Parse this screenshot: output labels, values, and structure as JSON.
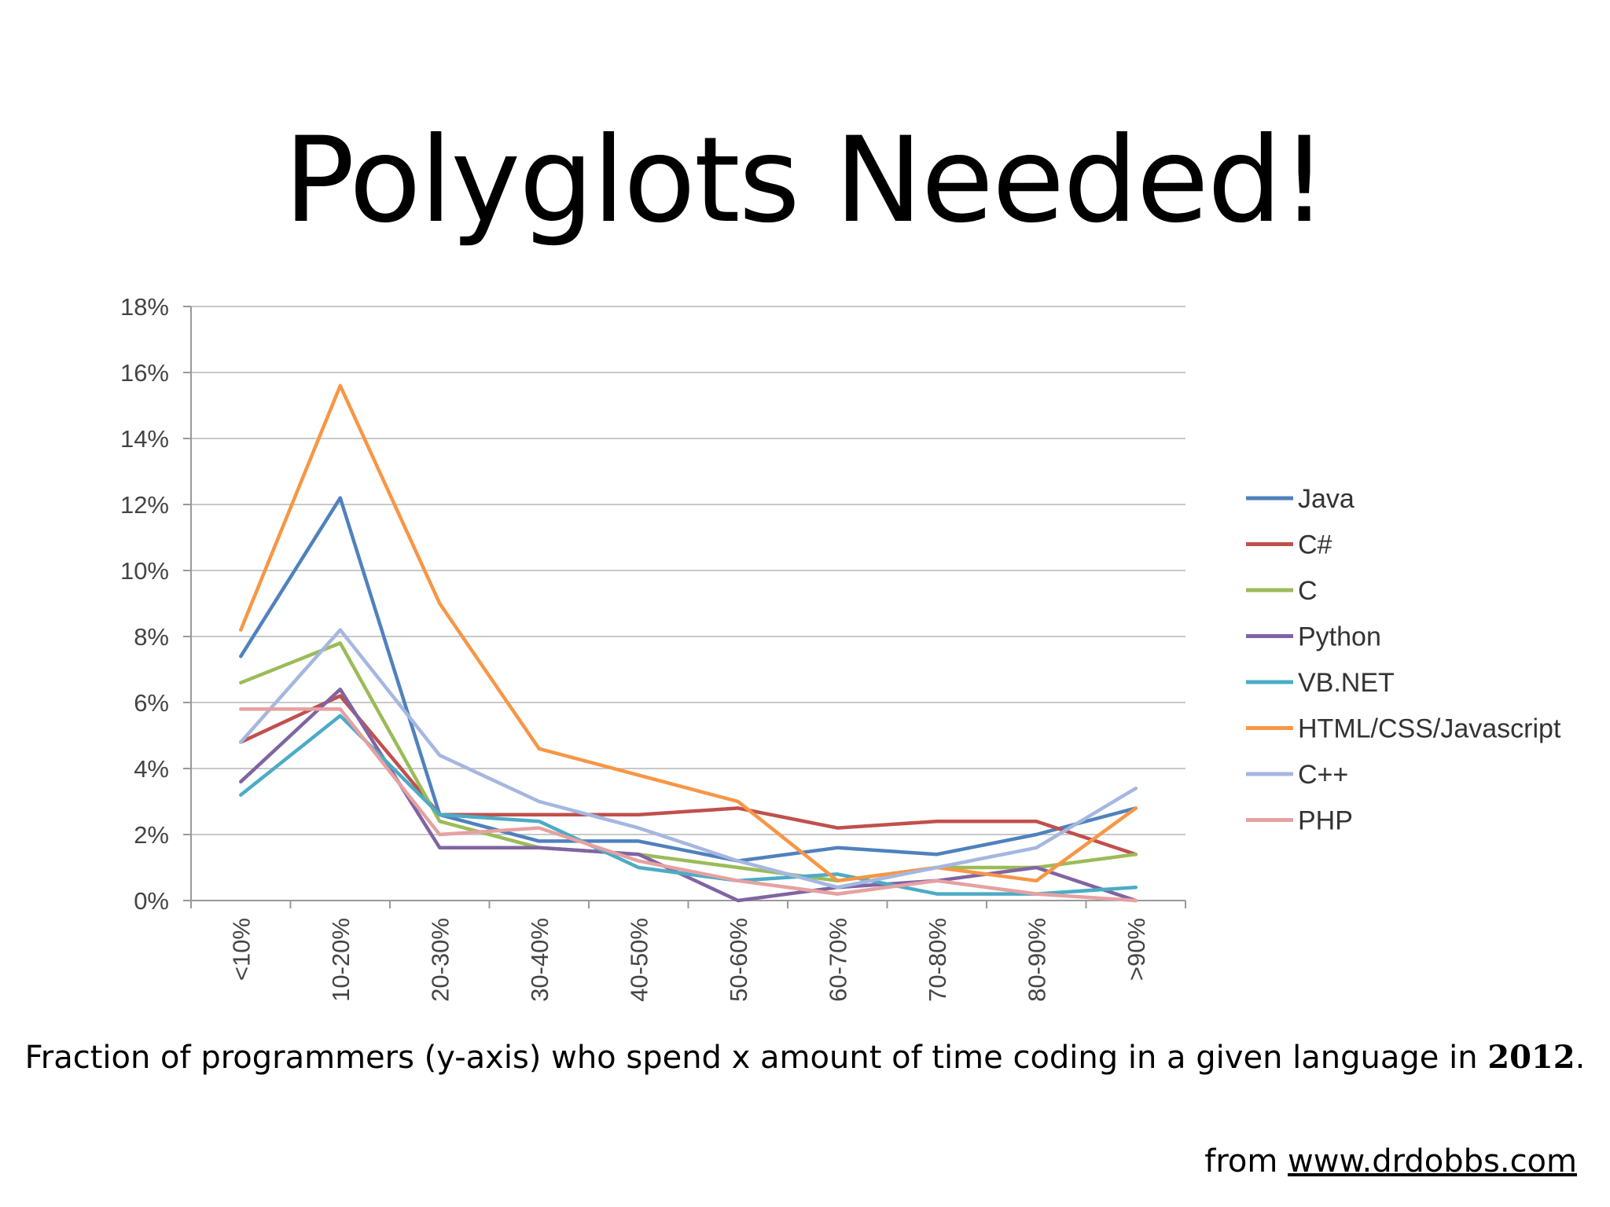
{
  "slide": {
    "title": "Polyglots Needed!",
    "caption_prefix": "Fraction of programmers (y-axis) who spend x amount of time coding in a given language in ",
    "caption_year": "2012",
    "caption_suffix": ".",
    "source_prefix": "from ",
    "source_link": "www.drdobbs.com"
  },
  "chart_data": {
    "type": "line",
    "categories": [
      "<10%",
      "10-20%",
      "20-30%",
      "30-40%",
      "40-50%",
      "50-60%",
      "60-70%",
      "70-80%",
      "80-90%",
      ">90%"
    ],
    "ylim": [
      0,
      18
    ],
    "yticks": [
      "0%",
      "2%",
      "4%",
      "6%",
      "8%",
      "10%",
      "12%",
      "14%",
      "16%",
      "18%"
    ],
    "ytick_values": [
      0,
      2,
      4,
      6,
      8,
      10,
      12,
      14,
      16,
      18
    ],
    "xlabel": "",
    "ylabel": "",
    "grid": "horizontal",
    "legend_position": "right",
    "series": [
      {
        "name": "Java",
        "color": "#4F81BD",
        "values": [
          7.4,
          12.2,
          2.6,
          1.8,
          1.8,
          1.2,
          1.6,
          1.4,
          2.0,
          2.8
        ]
      },
      {
        "name": "C#",
        "color": "#C0504D",
        "values": [
          4.8,
          6.2,
          2.6,
          2.6,
          2.6,
          2.8,
          2.2,
          2.4,
          2.4,
          1.4
        ]
      },
      {
        "name": "C",
        "color": "#9BBB59",
        "values": [
          6.6,
          7.8,
          2.4,
          1.6,
          1.4,
          1.0,
          0.6,
          1.0,
          1.0,
          1.4
        ]
      },
      {
        "name": "Python",
        "color": "#8064A2",
        "values": [
          3.6,
          6.4,
          1.6,
          1.6,
          1.4,
          0.0,
          0.4,
          0.6,
          1.0,
          0.0
        ]
      },
      {
        "name": "VB.NET",
        "color": "#4BACC6",
        "values": [
          3.2,
          5.6,
          2.6,
          2.4,
          1.0,
          0.6,
          0.8,
          0.2,
          0.2,
          0.4
        ]
      },
      {
        "name": "HTML/CSS/Javascript",
        "color": "#F79646",
        "values": [
          8.2,
          15.6,
          9.0,
          4.6,
          3.8,
          3.0,
          0.6,
          1.0,
          0.6,
          2.8
        ]
      },
      {
        "name": "C++",
        "color": "#A5B7E0",
        "values": [
          4.8,
          8.2,
          4.4,
          3.0,
          2.2,
          1.2,
          0.4,
          1.0,
          1.6,
          3.4
        ]
      },
      {
        "name": "PHP",
        "color": "#E6A1A1",
        "values": [
          5.8,
          5.8,
          2.0,
          2.2,
          1.2,
          0.6,
          0.2,
          0.6,
          0.2,
          0.0
        ]
      }
    ]
  }
}
